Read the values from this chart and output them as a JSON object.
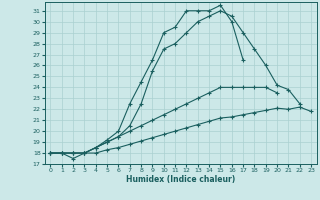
{
  "xlabel": "Humidex (Indice chaleur)",
  "ylabel": "",
  "bg_color": "#cce8e8",
  "grid_color": "#aad0d0",
  "line_color": "#1a5f5f",
  "xlim": [
    -0.5,
    23.5
  ],
  "ylim": [
    17,
    31.8
  ],
  "yticks": [
    17,
    18,
    19,
    20,
    21,
    22,
    23,
    24,
    25,
    26,
    27,
    28,
    29,
    30,
    31
  ],
  "xticks": [
    0,
    1,
    2,
    3,
    4,
    5,
    6,
    7,
    8,
    9,
    10,
    11,
    12,
    13,
    14,
    15,
    16,
    17,
    18,
    19,
    20,
    21,
    22,
    23
  ],
  "lines": [
    {
      "x": [
        0,
        1,
        2,
        3,
        4,
        5,
        6,
        7,
        8,
        9,
        10,
        11,
        12,
        13,
        14,
        15,
        16,
        17
      ],
      "y": [
        18,
        18,
        17.5,
        18,
        18.5,
        19.2,
        20,
        22.5,
        24.5,
        26.5,
        29,
        29.5,
        31,
        31,
        31,
        31.5,
        30.0,
        26.5
      ]
    },
    {
      "x": [
        0,
        1,
        2,
        3,
        4,
        5,
        6,
        7,
        8,
        9,
        10,
        11,
        12,
        13,
        14,
        15,
        16,
        17,
        18,
        19,
        20,
        21,
        22
      ],
      "y": [
        18,
        18,
        18,
        18,
        18.5,
        19,
        19.5,
        20.5,
        22.5,
        25.5,
        27.5,
        28,
        29,
        30,
        30.5,
        31,
        30.5,
        29,
        27.5,
        26,
        24.2,
        23.8,
        22.5
      ]
    },
    {
      "x": [
        0,
        1,
        2,
        3,
        4,
        5,
        6,
        7,
        8,
        9,
        10,
        11,
        12,
        13,
        14,
        15,
        16,
        17,
        18,
        19,
        20
      ],
      "y": [
        18,
        18,
        18,
        18,
        18.5,
        19,
        19.5,
        20,
        20.5,
        21,
        21.5,
        22,
        22.5,
        23,
        23.5,
        24,
        24,
        24,
        24,
        24,
        23.5
      ]
    },
    {
      "x": [
        0,
        1,
        2,
        3,
        4,
        5,
        6,
        7,
        8,
        9,
        10,
        11,
        12,
        13,
        14,
        15,
        16,
        17,
        18,
        19,
        20,
        21,
        22,
        23
      ],
      "y": [
        18,
        18,
        18,
        18,
        18,
        18.3,
        18.5,
        18.8,
        19.1,
        19.4,
        19.7,
        20,
        20.3,
        20.6,
        20.9,
        21.2,
        21.3,
        21.5,
        21.7,
        21.9,
        22.1,
        22.0,
        22.2,
        21.8
      ]
    }
  ]
}
